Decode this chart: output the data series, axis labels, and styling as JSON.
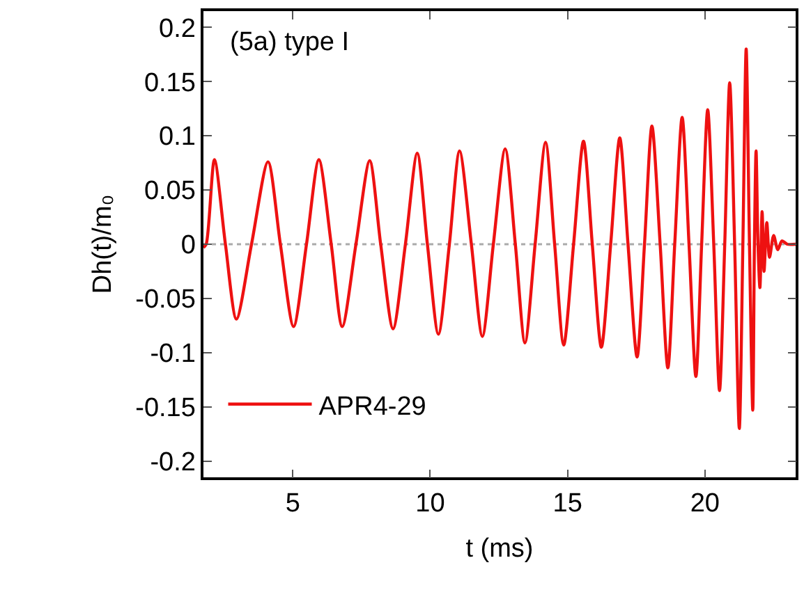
{
  "chart_data": {
    "type": "line",
    "xlabel": "t (ms)",
    "ylabel": "Dh(t)/m₀",
    "annotations": [
      "(5a) type I"
    ],
    "xlim": [
      1.75,
      23.3
    ],
    "xticks": [
      5,
      10,
      15,
      20
    ],
    "ylim": [
      -0.215,
      0.215
    ],
    "yticks": [
      -0.2,
      -0.15,
      -0.1,
      -0.05,
      0,
      0.05,
      0.1,
      0.15,
      0.2
    ],
    "grid": false,
    "legend": "bottom left",
    "line_style": "solid",
    "marker": "none",
    "ref_lines": [
      {
        "axis": "y",
        "value": 0,
        "color": "#aaaaaa",
        "line_style": "dotted"
      }
    ],
    "series": [
      {
        "name": "APR4-29",
        "color": "#ee1111",
        "x": [
          1.75,
          1.85,
          2.15,
          2.55,
          2.95,
          3.5,
          4.1,
          4.55,
          5.03,
          5.5,
          5.95,
          6.4,
          6.8,
          7.3,
          7.8,
          8.2,
          8.65,
          9.1,
          9.53,
          9.9,
          10.3,
          10.7,
          11.07,
          11.5,
          11.9,
          12.3,
          12.73,
          13.1,
          13.45,
          13.82,
          14.2,
          14.53,
          14.86,
          15.22,
          15.58,
          15.9,
          16.23,
          16.57,
          16.9,
          17.2,
          17.53,
          17.8,
          18.07,
          18.37,
          18.65,
          18.9,
          19.17,
          19.42,
          19.67,
          19.88,
          20.1,
          20.32,
          20.53,
          20.72,
          20.9,
          21.08,
          21.25,
          21.38,
          21.5,
          21.62,
          21.74,
          21.8,
          21.86,
          21.93,
          22.0,
          22.08,
          22.15,
          22.25,
          22.35,
          22.5,
          22.65,
          22.8,
          23.0,
          23.3
        ],
        "values": [
          -0.003,
          0,
          0.078,
          0,
          -0.069,
          0,
          0.076,
          0,
          -0.076,
          0,
          0.078,
          0,
          -0.076,
          0,
          0.077,
          0,
          -0.078,
          0,
          0.084,
          0,
          -0.083,
          0,
          0.086,
          0,
          -0.085,
          0,
          0.088,
          0,
          -0.091,
          0,
          0.094,
          0,
          -0.093,
          0,
          0.095,
          0,
          -0.095,
          0,
          0.098,
          0,
          -0.104,
          0,
          0.109,
          0,
          -0.114,
          0,
          0.117,
          0,
          -0.122,
          0,
          0.124,
          0,
          -0.135,
          0,
          0.149,
          0,
          -0.17,
          0,
          0.18,
          0,
          -0.153,
          0,
          0.086,
          0,
          -0.04,
          0.03,
          -0.025,
          0.02,
          -0.012,
          0.008,
          -0.005,
          0.003,
          0,
          0
        ]
      }
    ]
  }
}
